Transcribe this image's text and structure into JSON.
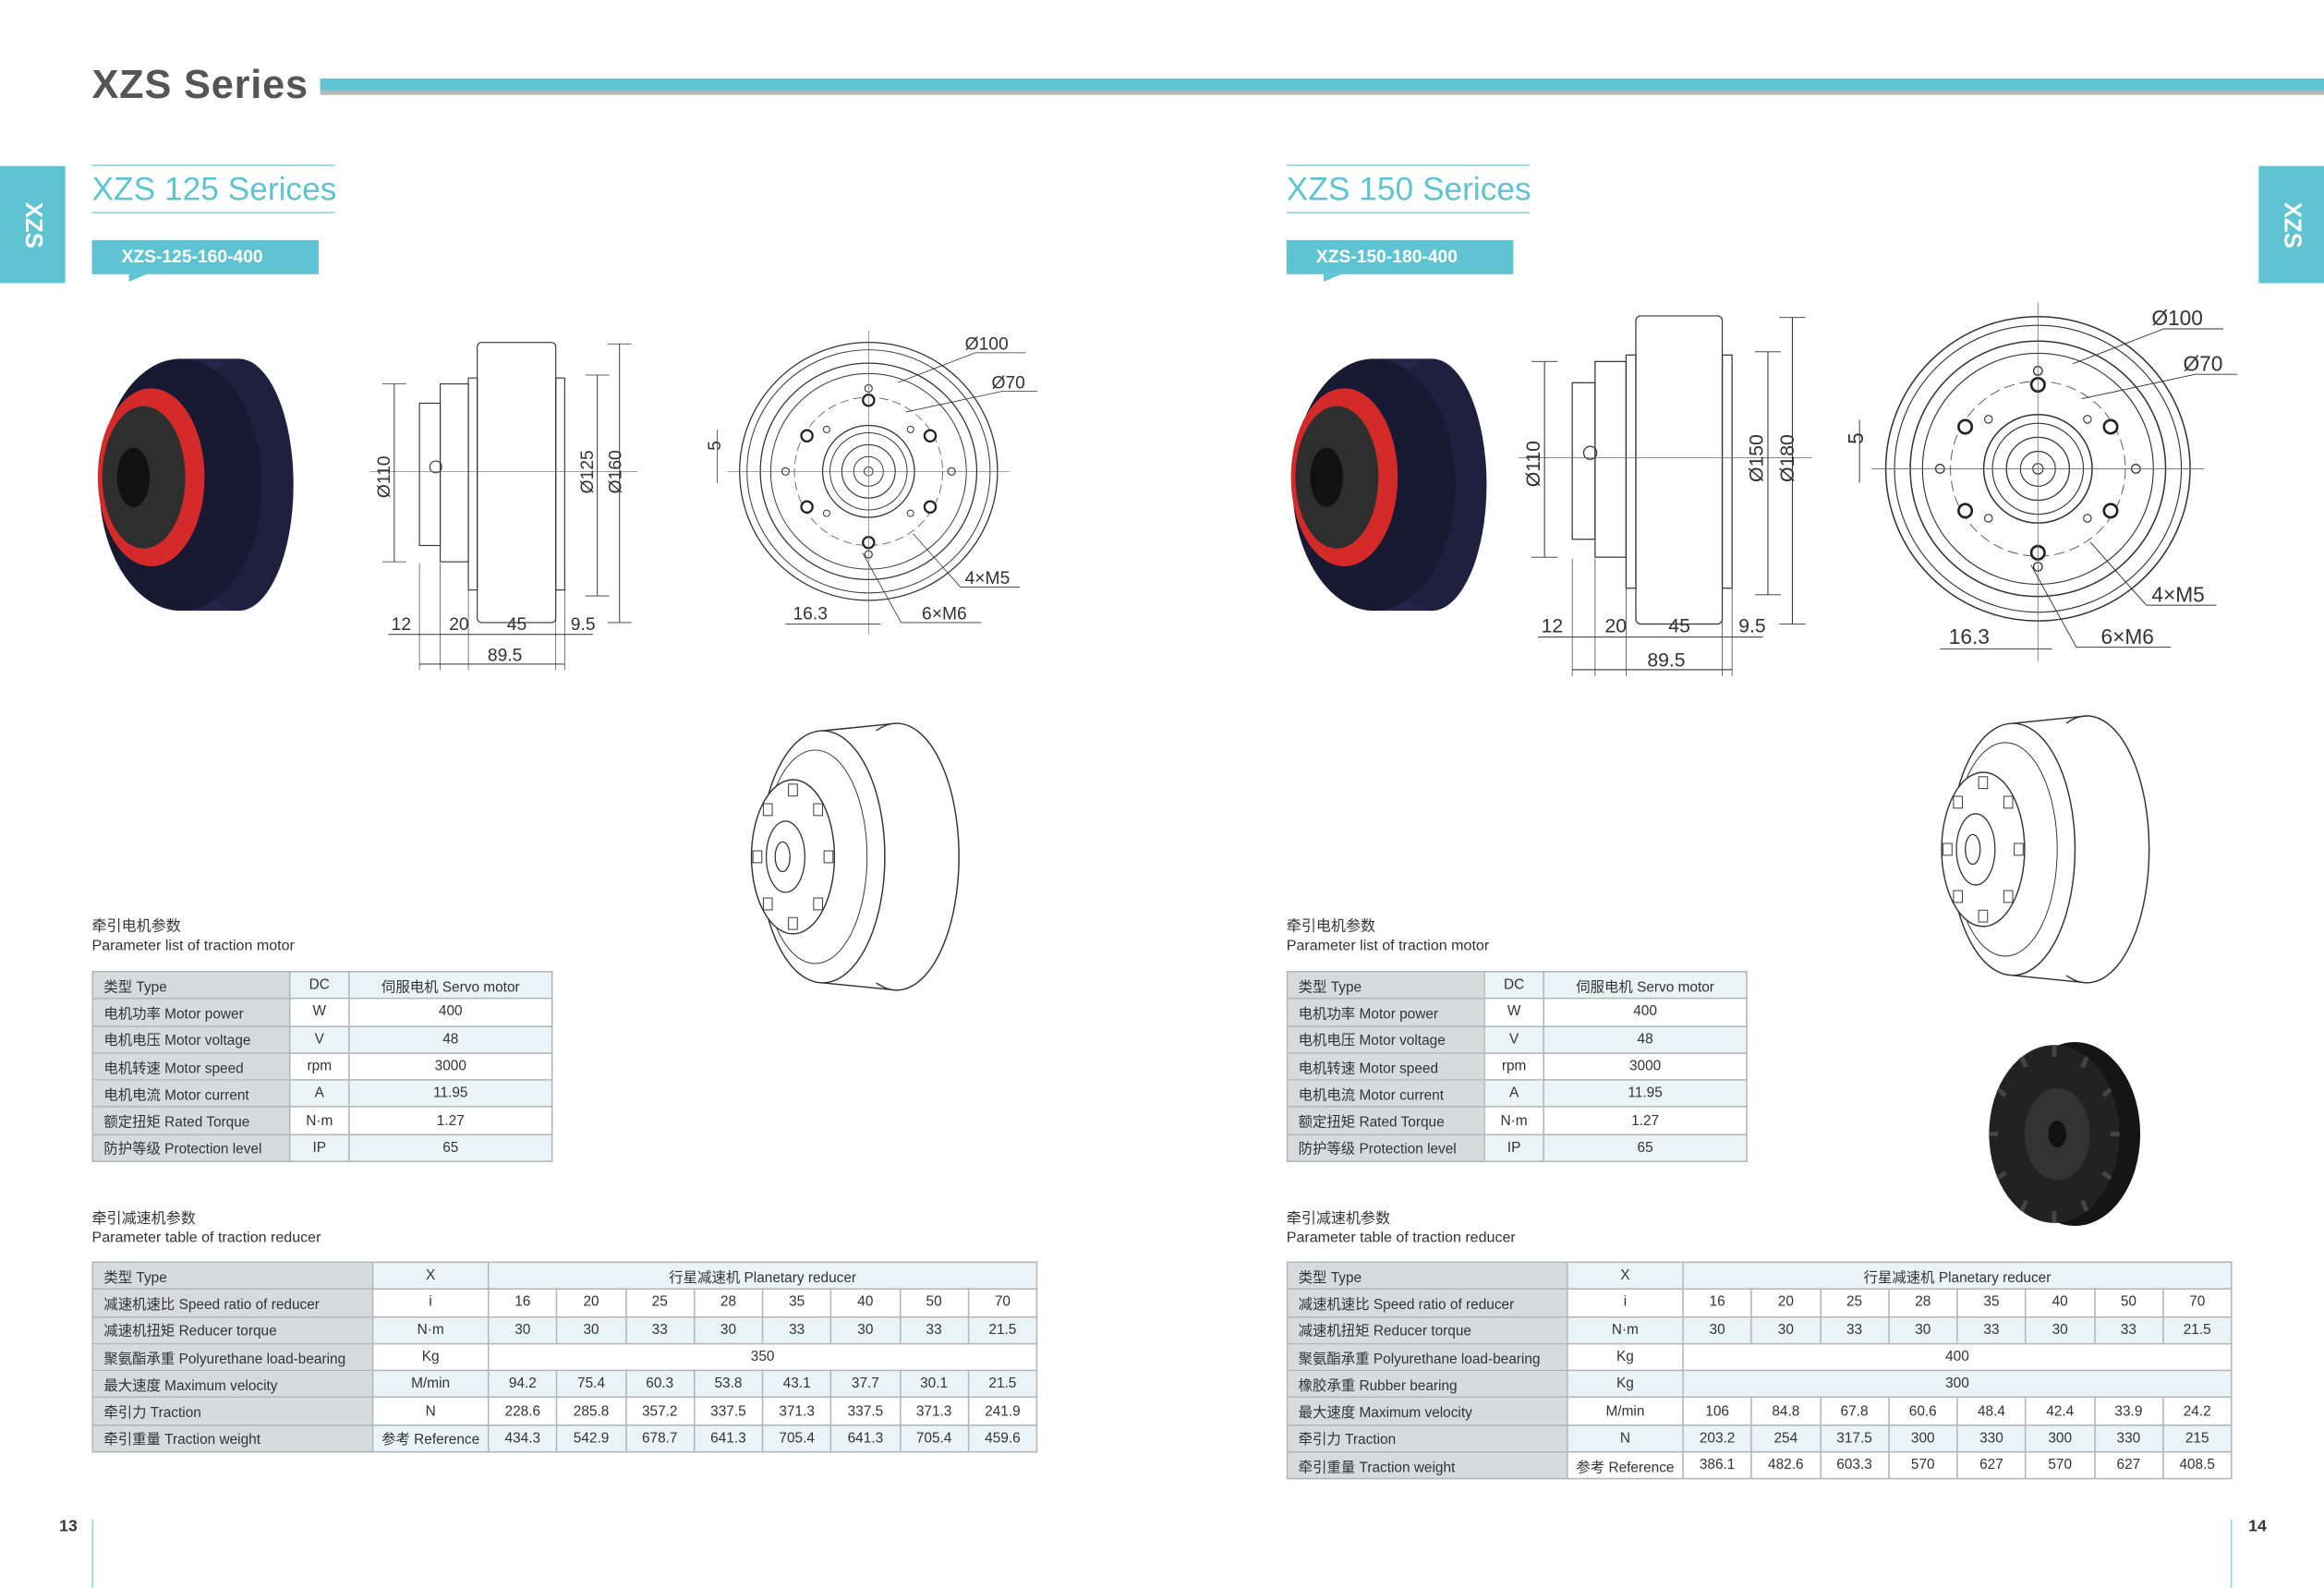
{
  "header": {
    "title": "XZS Series",
    "side_tab": "XZS"
  },
  "colors": {
    "accent": "#5fc3d1",
    "title_grey": "#555555",
    "wheel_red": "#d42a2a",
    "tire_navy": "#1e2040"
  },
  "pages": [
    {
      "number": "13",
      "series_title": "XZS 125 Serices",
      "model": "XZS-125-160-400",
      "dims": {
        "d_hub": "Ø110",
        "d_inner": "Ø125",
        "d_outer": "Ø160",
        "w1": "12",
        "w2": "20",
        "w3": "45",
        "w4": "9.5",
        "total": "89.5",
        "pcd1": "Ø100",
        "pcd2": "Ø70",
        "key": "5",
        "holes_a": "4×M5",
        "holes_b": "6×M6",
        "offset": "16.3"
      },
      "motor": {
        "title_cn": "牵引电机参数",
        "title_en": "Parameter list of traction motor",
        "rows": [
          [
            "类型 Type",
            "DC",
            "伺服电机 Servo motor"
          ],
          [
            "电机功率 Motor power",
            "W",
            "400"
          ],
          [
            "电机电压 Motor voltage",
            "V",
            "48"
          ],
          [
            "电机转速 Motor speed",
            "rpm",
            "3000"
          ],
          [
            "电机电流 Motor current",
            "A",
            "11.95"
          ],
          [
            "额定扭矩 Rated Torque",
            "N·m",
            "1.27"
          ],
          [
            "防护等级 Protection level",
            "IP",
            "65"
          ]
        ]
      },
      "reducer": {
        "title_cn": "牵引减速机参数",
        "title_en": "Parameter table of traction reducer",
        "rows": [
          {
            "label": "类型 Type",
            "unit": "X",
            "span": "行星减速机 Planetary reducer"
          },
          {
            "label": "减速机速比 Speed ratio of reducer",
            "unit": "i",
            "values": [
              "16",
              "20",
              "25",
              "28",
              "35",
              "40",
              "50",
              "70"
            ]
          },
          {
            "label": "减速机扭矩 Reducer torque",
            "unit": "N·m",
            "values": [
              "30",
              "30",
              "33",
              "30",
              "33",
              "30",
              "33",
              "21.5"
            ]
          },
          {
            "label": "聚氨酯承重 Polyurethane load-bearing",
            "unit": "Kg",
            "span": "350"
          },
          {
            "label": "最大速度 Maximum velocity",
            "unit": "M/min",
            "values": [
              "94.2",
              "75.4",
              "60.3",
              "53.8",
              "43.1",
              "37.7",
              "30.1",
              "21.5"
            ]
          },
          {
            "label": "牵引力 Traction",
            "unit": "N",
            "values": [
              "228.6",
              "285.8",
              "357.2",
              "337.5",
              "371.3",
              "337.5",
              "371.3",
              "241.9"
            ]
          },
          {
            "label": "牵引重量 Traction weight",
            "unit": "参考 Reference",
            "values": [
              "434.3",
              "542.9",
              "678.7",
              "641.3",
              "705.4",
              "641.3",
              "705.4",
              "459.6"
            ]
          }
        ]
      }
    },
    {
      "number": "14",
      "series_title": "XZS 150 Serices",
      "model": "XZS-150-180-400",
      "dims": {
        "d_hub": "Ø110",
        "d_inner": "Ø150",
        "d_outer": "Ø180",
        "w1": "12",
        "w2": "20",
        "w3": "45",
        "w4": "9.5",
        "total": "89.5",
        "pcd1": "Ø100",
        "pcd2": "Ø70",
        "key": "5",
        "holes_a": "4×M5",
        "holes_b": "6×M6",
        "offset": "16.3"
      },
      "motor": {
        "title_cn": "牵引电机参数",
        "title_en": "Parameter list of traction motor",
        "rows": [
          [
            "类型 Type",
            "DC",
            "伺服电机 Servo motor"
          ],
          [
            "电机功率 Motor power",
            "W",
            "400"
          ],
          [
            "电机电压 Motor voltage",
            "V",
            "48"
          ],
          [
            "电机转速 Motor speed",
            "rpm",
            "3000"
          ],
          [
            "电机电流 Motor current",
            "A",
            "11.95"
          ],
          [
            "额定扭矩 Rated Torque",
            "N·m",
            "1.27"
          ],
          [
            "防护等级 Protection level",
            "IP",
            "65"
          ]
        ]
      },
      "reducer": {
        "title_cn": "牵引减速机参数",
        "title_en": "Parameter table of traction reducer",
        "rows": [
          {
            "label": "类型 Type",
            "unit": "X",
            "span": "行星减速机 Planetary reducer"
          },
          {
            "label": "减速机速比 Speed ratio of reducer",
            "unit": "i",
            "values": [
              "16",
              "20",
              "25",
              "28",
              "35",
              "40",
              "50",
              "70"
            ]
          },
          {
            "label": "减速机扭矩 Reducer torque",
            "unit": "N·m",
            "values": [
              "30",
              "30",
              "33",
              "30",
              "33",
              "30",
              "33",
              "21.5"
            ]
          },
          {
            "label": "聚氨酯承重 Polyurethane load-bearing",
            "unit": "Kg",
            "span": "400"
          },
          {
            "label": "橡胶承重 Rubber bearing",
            "unit": "Kg",
            "span": "300"
          },
          {
            "label": "最大速度 Maximum velocity",
            "unit": "M/min",
            "values": [
              "106",
              "84.8",
              "67.8",
              "60.6",
              "48.4",
              "42.4",
              "33.9",
              "24.2"
            ]
          },
          {
            "label": "牵引力 Traction",
            "unit": "N",
            "values": [
              "203.2",
              "254",
              "317.5",
              "300",
              "330",
              "300",
              "330",
              "215"
            ]
          },
          {
            "label": "牵引重量 Traction weight",
            "unit": "参考 Reference",
            "values": [
              "386.1",
              "482.6",
              "603.3",
              "570",
              "627",
              "570",
              "627",
              "408.5"
            ]
          }
        ]
      }
    }
  ]
}
